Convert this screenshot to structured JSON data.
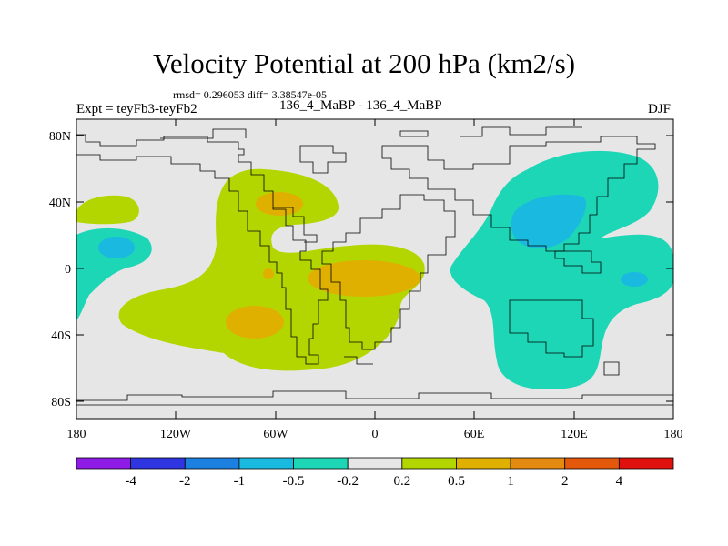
{
  "title": "Velocity Potential at 200 hPa (km2/s)",
  "stats_line": "rmsd= 0.296053 diff= 3.38547e-05",
  "left_label": "Expt = teyFb3-teyFb2",
  "center_label": "136_4_MaBP - 136_4_MaBP",
  "right_label": "DJF",
  "axes": {
    "lat_ticks": [
      "80N",
      "40N",
      "0",
      "40S",
      "80S"
    ],
    "lon_ticks": [
      "180",
      "120W",
      "60W",
      "0",
      "60E",
      "120E",
      "180"
    ]
  },
  "colorbar": {
    "colors": [
      "#8f1be6",
      "#2f35e0",
      "#1c80e0",
      "#1ab9e0",
      "#1dd6b6",
      "#e6e6e6",
      "#b4d600",
      "#e0b000",
      "#e48a10",
      "#e4580c",
      "#e0100e"
    ],
    "labels": [
      "-4",
      "-2",
      "-1",
      "-0.5",
      "-0.2",
      "0.2",
      "0.5",
      "1",
      "2",
      "4"
    ]
  },
  "map_colors": {
    "background": "#e6e6e6",
    "neg_light": "#1dd6b6",
    "neg_mid": "#1ab9e0",
    "pos_light": "#b4d600",
    "pos_mid": "#e0b000"
  }
}
